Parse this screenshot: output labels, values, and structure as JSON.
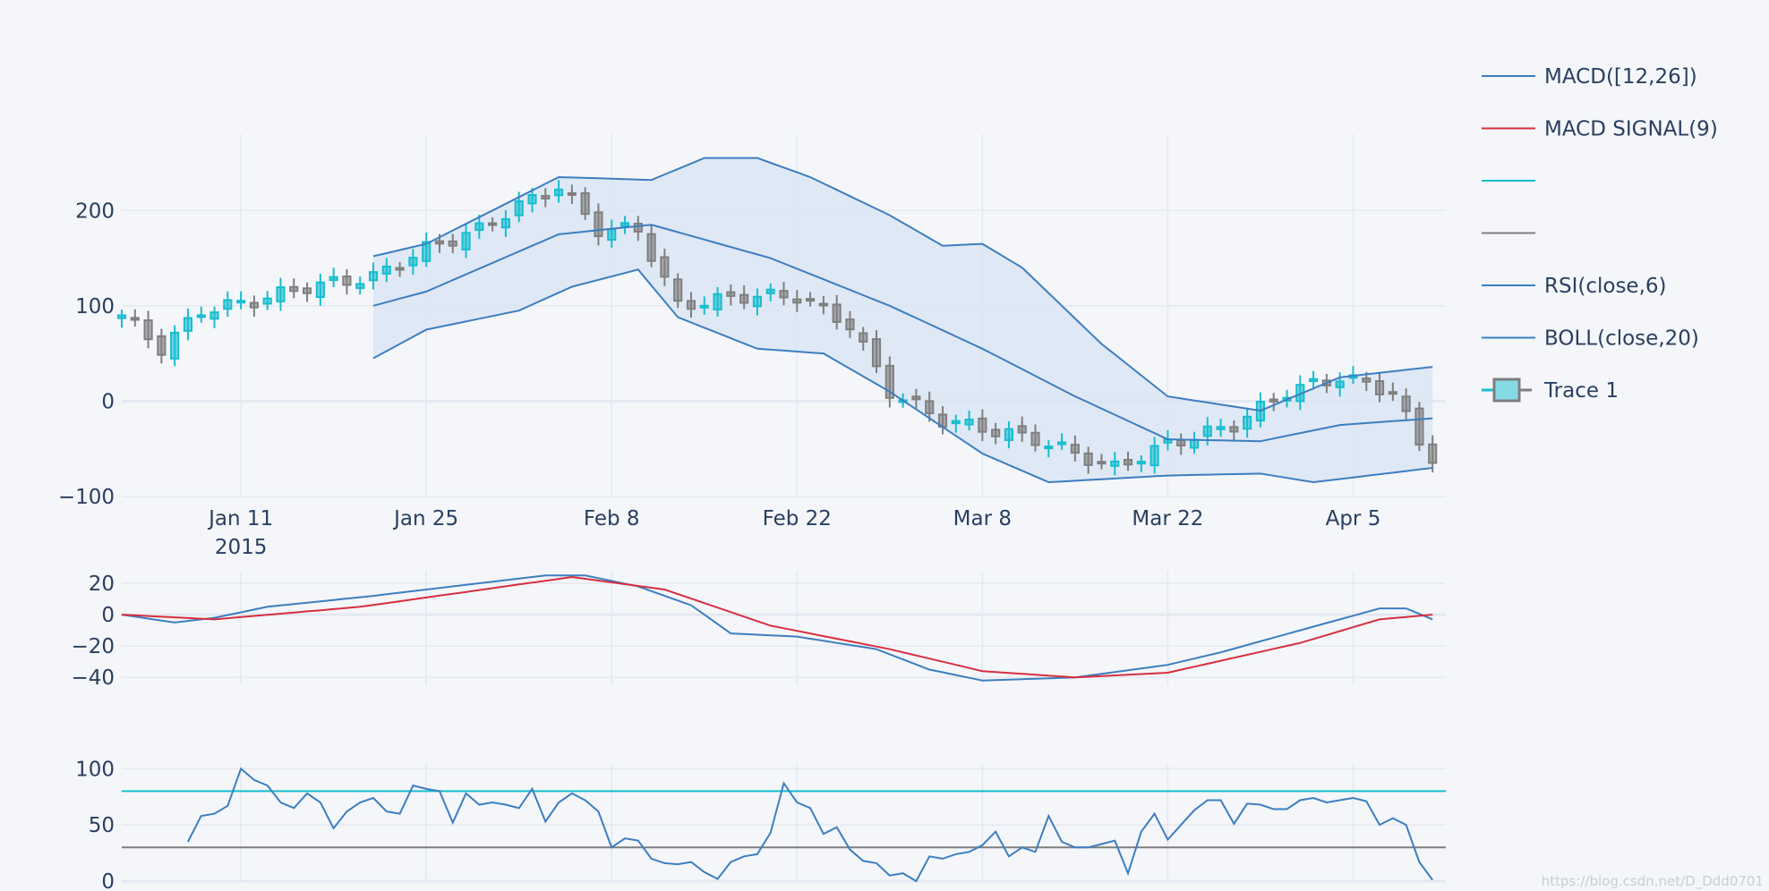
{
  "chart_data": {
    "type": "candlestick",
    "panels": [
      {
        "id": "price",
        "yticks": [
          -100,
          0,
          100,
          200
        ],
        "ylim": [
          -100,
          280
        ]
      },
      {
        "id": "macd",
        "yticks": [
          -40,
          -20,
          0,
          20
        ],
        "ylim": [
          -45,
          28
        ]
      },
      {
        "id": "rsi",
        "yticks": [
          0,
          50,
          100
        ],
        "ylim": [
          0,
          105
        ]
      }
    ],
    "x": {
      "start": "2015-01-02",
      "end": "2015-04-12",
      "ticks": [
        {
          "date": "2015-01-11",
          "label": "Jan 11",
          "sublabel": "2015"
        },
        {
          "date": "2015-01-25",
          "label": "Jan 25"
        },
        {
          "date": "2015-02-08",
          "label": "Feb 8"
        },
        {
          "date": "2015-02-22",
          "label": "Feb 22"
        },
        {
          "date": "2015-03-08",
          "label": "Mar 8"
        },
        {
          "date": "2015-03-22",
          "label": "Mar 22"
        },
        {
          "date": "2015-04-05",
          "label": "Apr 5"
        }
      ]
    },
    "close_anchors": [
      [
        "2015-01-02",
        90
      ],
      [
        "2015-01-05",
        55
      ],
      [
        "2015-01-08",
        95
      ],
      [
        "2015-01-12",
        105
      ],
      [
        "2015-01-16",
        120
      ],
      [
        "2015-01-21",
        130
      ],
      [
        "2015-01-25",
        160
      ],
      [
        "2015-01-29",
        180
      ],
      [
        "2015-02-01",
        205
      ],
      [
        "2015-02-04",
        225
      ],
      [
        "2015-02-07",
        180
      ],
      [
        "2015-02-10",
        180
      ],
      [
        "2015-02-13",
        100
      ],
      [
        "2015-02-18",
        110
      ],
      [
        "2015-02-22",
        110
      ],
      [
        "2015-02-26",
        80
      ],
      [
        "2015-03-01",
        10
      ],
      [
        "2015-03-05",
        -20
      ],
      [
        "2015-03-12",
        -40
      ],
      [
        "2015-03-18",
        -70
      ],
      [
        "2015-03-22",
        -45
      ],
      [
        "2015-03-27",
        -25
      ],
      [
        "2015-03-31",
        10
      ],
      [
        "2015-04-04",
        25
      ],
      [
        "2015-04-08",
        10
      ],
      [
        "2015-04-10",
        -45
      ],
      [
        "2015-04-11",
        -58
      ]
    ],
    "bollinger": {
      "start": "2015-01-21",
      "upper": [
        [
          "2015-01-21",
          152
        ],
        [
          "2015-01-25",
          165
        ],
        [
          "2015-02-04",
          235
        ],
        [
          "2015-02-11",
          232
        ],
        [
          "2015-02-15",
          255
        ],
        [
          "2015-02-19",
          255
        ],
        [
          "2015-02-23",
          235
        ],
        [
          "2015-03-01",
          195
        ],
        [
          "2015-03-05",
          163
        ],
        [
          "2015-03-08",
          165
        ],
        [
          "2015-03-11",
          140
        ],
        [
          "2015-03-17",
          60
        ],
        [
          "2015-03-22",
          5
        ],
        [
          "2015-03-29",
          -10
        ],
        [
          "2015-04-04",
          25
        ],
        [
          "2015-04-11",
          36
        ]
      ],
      "middle": [
        [
          "2015-01-21",
          100
        ],
        [
          "2015-01-25",
          115
        ],
        [
          "2015-02-04",
          175
        ],
        [
          "2015-02-11",
          185
        ],
        [
          "2015-02-20",
          150
        ],
        [
          "2015-03-01",
          100
        ],
        [
          "2015-03-08",
          55
        ],
        [
          "2015-03-15",
          5
        ],
        [
          "2015-03-22",
          -40
        ],
        [
          "2015-03-29",
          -42
        ],
        [
          "2015-04-04",
          -25
        ],
        [
          "2015-04-11",
          -18
        ]
      ],
      "lower": [
        [
          "2015-01-21",
          45
        ],
        [
          "2015-01-25",
          75
        ],
        [
          "2015-02-01",
          95
        ],
        [
          "2015-02-05",
          120
        ],
        [
          "2015-02-10",
          138
        ],
        [
          "2015-02-13",
          88
        ],
        [
          "2015-02-19",
          55
        ],
        [
          "2015-02-24",
          50
        ],
        [
          "2015-03-01",
          10
        ],
        [
          "2015-03-08",
          -55
        ],
        [
          "2015-03-13",
          -85
        ],
        [
          "2015-03-22",
          -78
        ],
        [
          "2015-03-29",
          -76
        ],
        [
          "2015-04-02",
          -85
        ],
        [
          "2015-04-08",
          -75
        ],
        [
          "2015-04-11",
          -70
        ]
      ]
    },
    "macd": [
      [
        "2015-01-02",
        0
      ],
      [
        "2015-01-06",
        -5
      ],
      [
        "2015-01-09",
        -2
      ],
      [
        "2015-01-13",
        5
      ],
      [
        "2015-01-21",
        12
      ],
      [
        "2015-01-29",
        20
      ],
      [
        "2015-02-03",
        25
      ],
      [
        "2015-02-06",
        25
      ],
      [
        "2015-02-10",
        18
      ],
      [
        "2015-02-14",
        6
      ],
      [
        "2015-02-17",
        -12
      ],
      [
        "2015-02-22",
        -14
      ],
      [
        "2015-02-28",
        -22
      ],
      [
        "2015-03-04",
        -35
      ],
      [
        "2015-03-08",
        -42
      ],
      [
        "2015-03-15",
        -40
      ],
      [
        "2015-03-22",
        -32
      ],
      [
        "2015-03-26",
        -24
      ],
      [
        "2015-04-01",
        -10
      ],
      [
        "2015-04-07",
        4
      ],
      [
        "2015-04-09",
        4
      ],
      [
        "2015-04-11",
        -3
      ]
    ],
    "macd_signal": [
      [
        "2015-01-02",
        0
      ],
      [
        "2015-01-09",
        -3
      ],
      [
        "2015-01-20",
        5
      ],
      [
        "2015-02-05",
        24
      ],
      [
        "2015-02-12",
        16
      ],
      [
        "2015-02-20",
        -7
      ],
      [
        "2015-03-01",
        -22
      ],
      [
        "2015-03-08",
        -36
      ],
      [
        "2015-03-15",
        -40
      ],
      [
        "2015-03-22",
        -37
      ],
      [
        "2015-04-01",
        -18
      ],
      [
        "2015-04-07",
        -3
      ],
      [
        "2015-04-11",
        0
      ]
    ],
    "rsi": [
      [
        "2015-01-07",
        35
      ],
      [
        "2015-01-08",
        58
      ],
      [
        "2015-01-09",
        60
      ],
      [
        "2015-01-10",
        67
      ],
      [
        "2015-01-11",
        100
      ],
      [
        "2015-01-12",
        90
      ],
      [
        "2015-01-13",
        85
      ],
      [
        "2015-01-14",
        70
      ],
      [
        "2015-01-15",
        65
      ],
      [
        "2015-01-16",
        78
      ],
      [
        "2015-01-17",
        70
      ],
      [
        "2015-01-18",
        47
      ],
      [
        "2015-01-19",
        62
      ],
      [
        "2015-01-20",
        70
      ],
      [
        "2015-01-21",
        74
      ],
      [
        "2015-01-22",
        62
      ],
      [
        "2015-01-23",
        60
      ],
      [
        "2015-01-24",
        85
      ],
      [
        "2015-01-25",
        82
      ],
      [
        "2015-01-26",
        80
      ],
      [
        "2015-01-27",
        52
      ],
      [
        "2015-01-28",
        78
      ],
      [
        "2015-01-29",
        68
      ],
      [
        "2015-01-30",
        70
      ],
      [
        "2015-01-31",
        68
      ],
      [
        "2015-02-01",
        65
      ],
      [
        "2015-02-02",
        82
      ],
      [
        "2015-02-03",
        53
      ],
      [
        "2015-02-04",
        70
      ],
      [
        "2015-02-05",
        78
      ],
      [
        "2015-02-06",
        72
      ],
      [
        "2015-02-07",
        62
      ],
      [
        "2015-02-08",
        30
      ],
      [
        "2015-02-09",
        38
      ],
      [
        "2015-02-10",
        36
      ],
      [
        "2015-02-11",
        20
      ],
      [
        "2015-02-12",
        16
      ],
      [
        "2015-02-13",
        15
      ],
      [
        "2015-02-14",
        17
      ],
      [
        "2015-02-15",
        8
      ],
      [
        "2015-02-16",
        2
      ],
      [
        "2015-02-17",
        17
      ],
      [
        "2015-02-18",
        22
      ],
      [
        "2015-02-19",
        24
      ],
      [
        "2015-02-20",
        43
      ],
      [
        "2015-02-21",
        87
      ],
      [
        "2015-02-22",
        70
      ],
      [
        "2015-02-23",
        65
      ],
      [
        "2015-02-24",
        42
      ],
      [
        "2015-02-25",
        48
      ],
      [
        "2015-02-26",
        28
      ],
      [
        "2015-02-27",
        18
      ],
      [
        "2015-02-28",
        16
      ],
      [
        "2015-03-01",
        5
      ],
      [
        "2015-03-02",
        7
      ],
      [
        "2015-03-03",
        0
      ],
      [
        "2015-03-04",
        22
      ],
      [
        "2015-03-05",
        20
      ],
      [
        "2015-03-06",
        24
      ],
      [
        "2015-03-07",
        26
      ],
      [
        "2015-03-08",
        32
      ],
      [
        "2015-03-09",
        44
      ],
      [
        "2015-03-10",
        22
      ],
      [
        "2015-03-11",
        30
      ],
      [
        "2015-03-12",
        26
      ],
      [
        "2015-03-13",
        58
      ],
      [
        "2015-03-14",
        35
      ],
      [
        "2015-03-15",
        30
      ],
      [
        "2015-03-16",
        30
      ],
      [
        "2015-03-17",
        33
      ],
      [
        "2015-03-18",
        36
      ],
      [
        "2015-03-19",
        7
      ],
      [
        "2015-03-20",
        44
      ],
      [
        "2015-03-21",
        60
      ],
      [
        "2015-03-22",
        37
      ],
      [
        "2015-03-23",
        50
      ],
      [
        "2015-03-24",
        63
      ],
      [
        "2015-03-25",
        72
      ],
      [
        "2015-03-26",
        72
      ],
      [
        "2015-03-27",
        51
      ],
      [
        "2015-03-28",
        69
      ],
      [
        "2015-03-29",
        68
      ],
      [
        "2015-03-30",
        64
      ],
      [
        "2015-03-31",
        64
      ],
      [
        "2015-04-01",
        72
      ],
      [
        "2015-04-02",
        74
      ],
      [
        "2015-04-03",
        70
      ],
      [
        "2015-04-04",
        72
      ],
      [
        "2015-04-05",
        74
      ],
      [
        "2015-04-06",
        71
      ],
      [
        "2015-04-07",
        50
      ],
      [
        "2015-04-08",
        56
      ],
      [
        "2015-04-09",
        50
      ],
      [
        "2015-04-10",
        17
      ],
      [
        "2015-04-11",
        1
      ]
    ],
    "rsi_levels": [
      80,
      30
    ],
    "legend": {
      "placement": "top-right",
      "items": [
        {
          "name": " MACD([12,26])",
          "color": "#3d7ebf",
          "kind": "line"
        },
        {
          "name": "MACD SIGNAL(9)",
          "color": "#d62f3f",
          "kind": "line"
        },
        {
          "name": "",
          "color": "#17becf",
          "kind": "line"
        },
        {
          "name": "",
          "color": "#7f7f7f",
          "kind": "line"
        },
        {
          "name": "RSI(close,6)",
          "color": "#3d7ebf",
          "kind": "line"
        },
        {
          "name": "BOLL(close,20)",
          "color": "#3d7ebf",
          "kind": "line"
        },
        {
          "name": "Trace 1",
          "color": "#17becf",
          "kind": "candle"
        }
      ]
    },
    "colors": {
      "increasing": "#17becf",
      "decreasing": "#7f7f7f",
      "band_fill": "#dbe5f3",
      "line": "#3d7ebf",
      "signal": "#d62f3f",
      "grid": "#e4e8f0",
      "zeroline": "#e4e8f0",
      "bg": "#f4f6fa"
    }
  },
  "watermark": "https://blog.csdn.net/D_Ddd0701"
}
